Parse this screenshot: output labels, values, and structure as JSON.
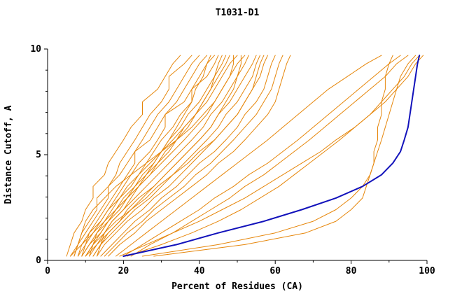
{
  "chart_data": {
    "type": "line",
    "title": "T1031-D1",
    "xlabel": "Percent of Residues (CA)",
    "ylabel": "Distance Cutoff, A",
    "xlim": [
      0,
      100
    ],
    "ylim": [
      0,
      10
    ],
    "xticks": [
      0,
      20,
      40,
      60,
      80,
      100
    ],
    "yticks": [
      0,
      5,
      10
    ],
    "xminor": [
      10,
      30,
      50,
      70,
      90
    ],
    "yminor": [
      1,
      2,
      3,
      4,
      6,
      7,
      8,
      9
    ],
    "grid": false,
    "legend": "none",
    "colors": {
      "orange": "#e6860a",
      "blue": "#1212bb"
    },
    "y_levels": [
      0.2,
      0.75,
      1.3,
      1.85,
      2.4,
      2.95,
      3.5,
      4.05,
      4.6,
      5.15,
      5.7,
      6.3,
      6.9,
      7.5,
      8.1,
      8.7,
      9.3,
      9.7
    ],
    "series": [
      {
        "name": "orange-01",
        "color": "orange",
        "width": 1,
        "x": [
          5,
          6,
          7,
          9,
          10,
          12,
          12,
          15,
          16,
          18,
          20,
          22,
          25,
          25,
          29,
          31,
          33,
          35
        ]
      },
      {
        "name": "orange-02",
        "color": "orange",
        "width": 1,
        "x": [
          6,
          8,
          9,
          11,
          13,
          13,
          16,
          18,
          19,
          21,
          23,
          25,
          27,
          30,
          32,
          32,
          36,
          38
        ]
      },
      {
        "name": "orange-03",
        "color": "orange",
        "width": 1,
        "x": [
          7,
          8,
          10,
          12,
          14,
          16,
          16,
          19,
          21,
          23,
          25,
          27,
          29,
          32,
          34,
          36,
          38,
          40
        ]
      },
      {
        "name": "orange-04",
        "color": "orange",
        "width": 1,
        "x": [
          8,
          10,
          11,
          13,
          15,
          17,
          19,
          21,
          23,
          23,
          27,
          29,
          31,
          34,
          36,
          38,
          40,
          42
        ]
      },
      {
        "name": "orange-05",
        "color": "orange",
        "width": 1,
        "x": [
          9,
          10,
          12,
          14,
          16,
          18,
          20,
          22,
          24,
          27,
          29,
          31,
          31,
          36,
          38,
          40,
          42,
          44
        ]
      },
      {
        "name": "orange-06",
        "color": "orange",
        "width": 1,
        "x": [
          10,
          12,
          13,
          15,
          17,
          19,
          22,
          24,
          26,
          28,
          30,
          33,
          35,
          38,
          38,
          42,
          44,
          45
        ]
      },
      {
        "name": "orange-07",
        "color": "orange",
        "width": 1,
        "x": [
          11,
          12,
          14,
          16,
          19,
          21,
          23,
          25,
          28,
          30,
          32,
          35,
          37,
          40,
          42,
          44,
          46,
          47
        ]
      },
      {
        "name": "orange-08",
        "color": "orange",
        "width": 1,
        "x": [
          12,
          14,
          15,
          17,
          20,
          22,
          24,
          27,
          29,
          31,
          34,
          36,
          39,
          41,
          43,
          45,
          47,
          48
        ]
      },
      {
        "name": "orange-09",
        "color": "orange",
        "width": 1,
        "x": [
          8,
          9,
          11,
          14,
          16,
          19,
          21,
          24,
          27,
          30,
          33,
          36,
          39,
          42,
          44,
          46,
          48,
          50
        ]
      },
      {
        "name": "orange-10",
        "color": "orange",
        "width": 1,
        "x": [
          9,
          11,
          13,
          16,
          18,
          21,
          24,
          27,
          30,
          33,
          36,
          39,
          42,
          44,
          46,
          48,
          50,
          52
        ]
      },
      {
        "name": "orange-11",
        "color": "orange",
        "width": 1,
        "x": [
          10,
          12,
          15,
          17,
          20,
          23,
          26,
          29,
          32,
          35,
          38,
          41,
          43,
          46,
          48,
          50,
          52,
          53
        ]
      },
      {
        "name": "orange-12",
        "color": "orange",
        "width": 1,
        "x": [
          11,
          13,
          16,
          19,
          22,
          25,
          28,
          31,
          34,
          37,
          40,
          43,
          45,
          48,
          50,
          52,
          54,
          55
        ]
      },
      {
        "name": "orange-13",
        "color": "orange",
        "width": 1,
        "x": [
          12,
          14,
          17,
          20,
          23,
          27,
          30,
          33,
          36,
          39,
          42,
          45,
          47,
          50,
          52,
          54,
          55,
          56
        ]
      },
      {
        "name": "orange-14",
        "color": "orange",
        "width": 1,
        "x": [
          13,
          15,
          18,
          21,
          25,
          28,
          32,
          35,
          38,
          41,
          44,
          47,
          50,
          52,
          54,
          56,
          57,
          58
        ]
      },
      {
        "name": "orange-15",
        "color": "orange",
        "width": 1,
        "x": [
          14,
          17,
          20,
          23,
          27,
          30,
          34,
          37,
          40,
          44,
          47,
          50,
          52,
          55,
          57,
          58,
          59,
          60
        ]
      },
      {
        "name": "orange-16",
        "color": "orange",
        "width": 1,
        "x": [
          15,
          18,
          21,
          25,
          28,
          32,
          36,
          39,
          43,
          46,
          49,
          52,
          55,
          57,
          59,
          60,
          61,
          62
        ]
      },
      {
        "name": "orange-17",
        "color": "orange",
        "width": 1,
        "x": [
          16,
          19,
          23,
          26,
          30,
          34,
          38,
          42,
          45,
          49,
          52,
          55,
          58,
          60,
          61,
          62,
          63,
          64
        ]
      },
      {
        "name": "orange-18",
        "color": "orange",
        "width": 1,
        "x": [
          7,
          8,
          9,
          10,
          12,
          15,
          18,
          22,
          26,
          30,
          34,
          38,
          41,
          44,
          46,
          48,
          49,
          49
        ]
      },
      {
        "name": "orange-19",
        "color": "orange",
        "width": 1,
        "x": [
          6,
          9,
          12,
          15,
          18,
          21,
          24,
          26,
          28,
          30,
          32,
          34,
          36,
          38,
          39,
          41,
          42,
          43
        ]
      },
      {
        "name": "orange-20",
        "color": "orange",
        "width": 1,
        "x": [
          10,
          13,
          15,
          18,
          22,
          26,
          29,
          33,
          37,
          40,
          44,
          47,
          50,
          52,
          54,
          55,
          56,
          57
        ]
      },
      {
        "name": "orange-21",
        "color": "orange",
        "width": 1,
        "x": [
          13,
          14,
          16,
          19,
          21,
          24,
          28,
          31,
          34,
          37,
          40,
          43,
          45,
          47,
          49,
          50,
          51,
          51
        ]
      },
      {
        "name": "orange-22",
        "color": "orange",
        "width": 1,
        "x": [
          9,
          11,
          14,
          16,
          18,
          20,
          23,
          26,
          29,
          32,
          34,
          37,
          39,
          41,
          43,
          44,
          45,
          46
        ]
      },
      {
        "name": "orange-23",
        "color": "orange",
        "width": 1,
        "x": [
          18,
          22,
          26,
          30,
          34,
          38,
          42,
          46,
          50,
          54,
          58,
          62,
          66,
          70,
          74,
          79,
          84,
          88
        ]
      },
      {
        "name": "orange-24",
        "color": "orange",
        "width": 1,
        "x": [
          20,
          25,
          30,
          35,
          40,
          44,
          49,
          53,
          58,
          62,
          66,
          70,
          74,
          78,
          82,
          86,
          90,
          93
        ]
      },
      {
        "name": "orange-25",
        "color": "orange",
        "width": 1,
        "x": [
          22,
          27,
          33,
          38,
          43,
          48,
          52,
          57,
          61,
          65,
          69,
          73,
          77,
          81,
          85,
          89,
          92,
          95
        ]
      },
      {
        "name": "orange-26",
        "color": "orange",
        "width": 1,
        "x": [
          21,
          30,
          38,
          45,
          51,
          56,
          61,
          65,
          69,
          73,
          77,
          81,
          85,
          88,
          91,
          94,
          96,
          98
        ]
      },
      {
        "name": "orange-27",
        "color": "orange",
        "width": 1,
        "x": [
          19,
          26,
          33,
          40,
          46,
          52,
          57,
          62,
          67,
          72,
          76,
          81,
          85,
          89,
          92,
          95,
          97,
          99
        ]
      },
      {
        "name": "orange-28",
        "color": "orange",
        "width": 1,
        "x": [
          25,
          45,
          60,
          70,
          76,
          80,
          83,
          85,
          86,
          87,
          88,
          89,
          90,
          91,
          92,
          93,
          95,
          97
        ]
      },
      {
        "name": "orange-29",
        "color": "orange",
        "width": 1,
        "x": [
          28,
          52,
          68,
          76,
          80,
          83,
          84,
          85,
          86,
          86,
          87,
          87,
          88,
          88,
          89,
          89,
          90,
          91
        ]
      },
      {
        "name": "blue-main",
        "color": "blue",
        "width": 2,
        "x": [
          20,
          34,
          45,
          57,
          67,
          76,
          83,
          88,
          91,
          93,
          94,
          95,
          95.5,
          96,
          96.5,
          97,
          97.5,
          98
        ]
      }
    ]
  }
}
